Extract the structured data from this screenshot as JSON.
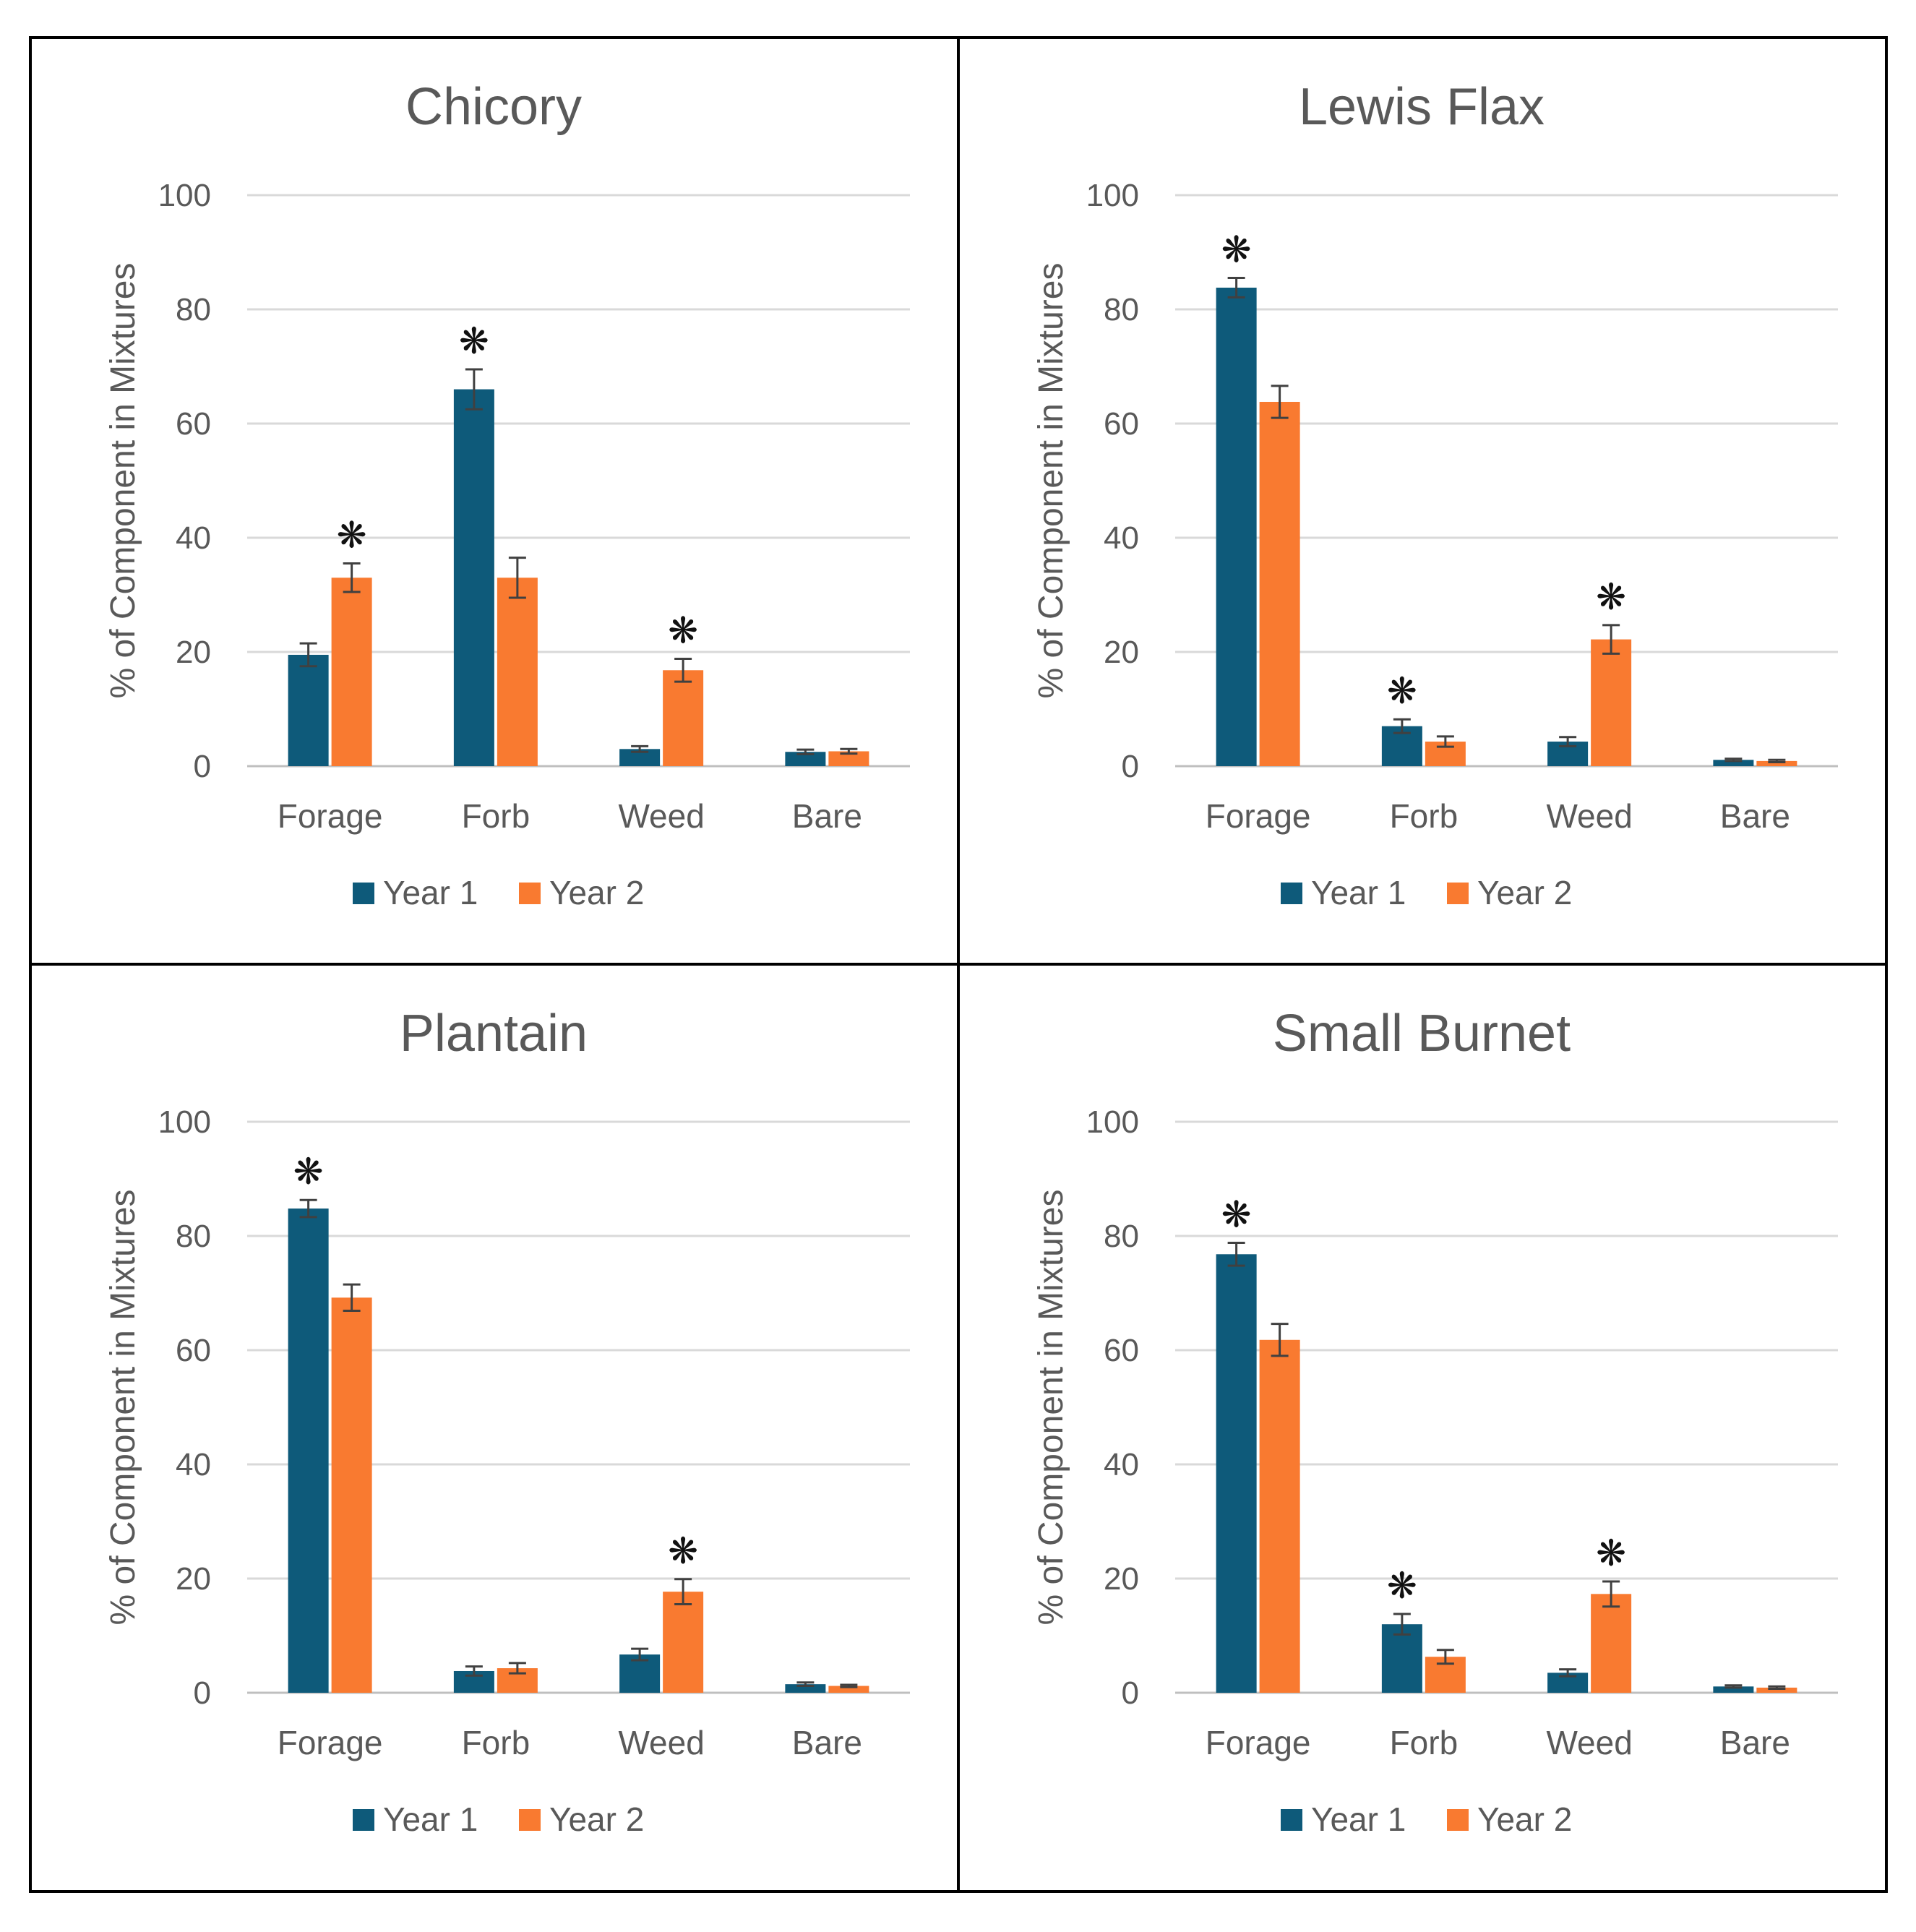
{
  "chart_data": [
    {
      "type": "bar",
      "title": "Chicory",
      "categories": [
        "Forage",
        "Forb",
        "Weed",
        "Bare"
      ],
      "ylabel": "% of Component in Mixtures",
      "xlabel": "",
      "ylim": [
        0,
        100
      ],
      "yticks": [
        "0",
        "20",
        "40",
        "60",
        "80",
        "100"
      ],
      "series": [
        {
          "name": "Year 1",
          "color": "#0E5A7A",
          "values": [
            19.5,
            66,
            3,
            2.5
          ],
          "errors": [
            2,
            3.5,
            0.5,
            0.4
          ],
          "significant": [
            false,
            true,
            false,
            false
          ]
        },
        {
          "name": "Year 2",
          "color": "#F97A30",
          "values": [
            33,
            33,
            16.8,
            2.6
          ],
          "errors": [
            2.5,
            3.5,
            2,
            0.4
          ],
          "significant": [
            true,
            false,
            true,
            false
          ]
        }
      ],
      "significance_marker": "❋"
    },
    {
      "type": "bar",
      "title": "Lewis Flax",
      "categories": [
        "Forage",
        "Forb",
        "Weed",
        "Bare"
      ],
      "ylabel": "% of Component in Mixtures",
      "xlabel": "",
      "ylim": [
        0,
        100
      ],
      "yticks": [
        "0",
        "20",
        "40",
        "60",
        "80",
        "100"
      ],
      "series": [
        {
          "name": "Year 1",
          "color": "#0E5A7A",
          "values": [
            83.8,
            7,
            4.3,
            1.1
          ],
          "errors": [
            1.7,
            1.2,
            0.8,
            0.2
          ],
          "significant": [
            true,
            true,
            false,
            false
          ]
        },
        {
          "name": "Year 2",
          "color": "#F97A30",
          "values": [
            63.8,
            4.3,
            22.2,
            0.9
          ],
          "errors": [
            2.8,
            0.9,
            2.5,
            0.2
          ],
          "significant": [
            false,
            false,
            true,
            false
          ]
        }
      ],
      "significance_marker": "❋"
    },
    {
      "type": "bar",
      "title": "Plantain",
      "categories": [
        "Forage",
        "Forb",
        "Weed",
        "Bare"
      ],
      "ylabel": "% of Component in Mixtures",
      "xlabel": "",
      "ylim": [
        0,
        100
      ],
      "yticks": [
        "0",
        "20",
        "40",
        "60",
        "80",
        "100"
      ],
      "series": [
        {
          "name": "Year 1",
          "color": "#0E5A7A",
          "values": [
            84.8,
            3.8,
            6.7,
            1.5
          ],
          "errors": [
            1.5,
            0.8,
            1,
            0.3
          ],
          "significant": [
            true,
            false,
            false,
            false
          ]
        },
        {
          "name": "Year 2",
          "color": "#F97A30",
          "values": [
            69.2,
            4.3,
            17.7,
            1.2
          ],
          "errors": [
            2.3,
            0.9,
            2.2,
            0.2
          ],
          "significant": [
            false,
            false,
            true,
            false
          ]
        }
      ],
      "significance_marker": "❋"
    },
    {
      "type": "bar",
      "title": "Small Burnet",
      "categories": [
        "Forage",
        "Forb",
        "Weed",
        "Bare"
      ],
      "ylabel": "% of Component in Mixtures",
      "xlabel": "",
      "ylim": [
        0,
        100
      ],
      "yticks": [
        "0",
        "20",
        "40",
        "60",
        "80",
        "100"
      ],
      "series": [
        {
          "name": "Year 1",
          "color": "#0E5A7A",
          "values": [
            76.8,
            12,
            3.5,
            1.1
          ],
          "errors": [
            2,
            1.8,
            0.6,
            0.2
          ],
          "significant": [
            true,
            true,
            false,
            false
          ]
        },
        {
          "name": "Year 2",
          "color": "#F97A30",
          "values": [
            61.8,
            6.3,
            17.3,
            0.9
          ],
          "errors": [
            2.8,
            1.2,
            2.2,
            0.2
          ],
          "significant": [
            false,
            false,
            true,
            false
          ]
        }
      ],
      "significance_marker": "❋"
    }
  ]
}
